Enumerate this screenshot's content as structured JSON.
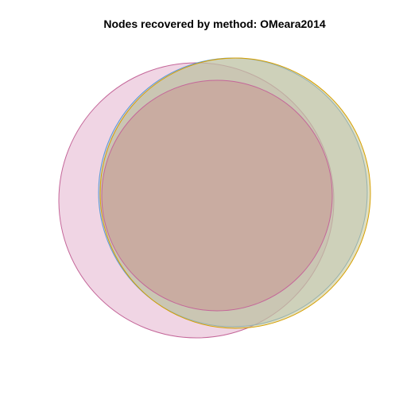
{
  "title": "Nodes recovered by method: OMeara2014",
  "venn": {
    "sets": [
      {
        "id": "set-a",
        "stroke": "#c46699",
        "fill": "#e3b3cd",
        "fill_opacity": 0.55
      },
      {
        "id": "set-b",
        "stroke": "#5b9bd5",
        "fill": "#a7b8d8",
        "fill_opacity": 0.45
      },
      {
        "id": "set-c",
        "stroke": "#d7a000",
        "fill": "#c7c58f",
        "fill_opacity": 0.55
      },
      {
        "id": "set-d",
        "stroke": "#c46699",
        "fill": "#c8a39b",
        "fill_opacity": 0.75
      }
    ]
  }
}
